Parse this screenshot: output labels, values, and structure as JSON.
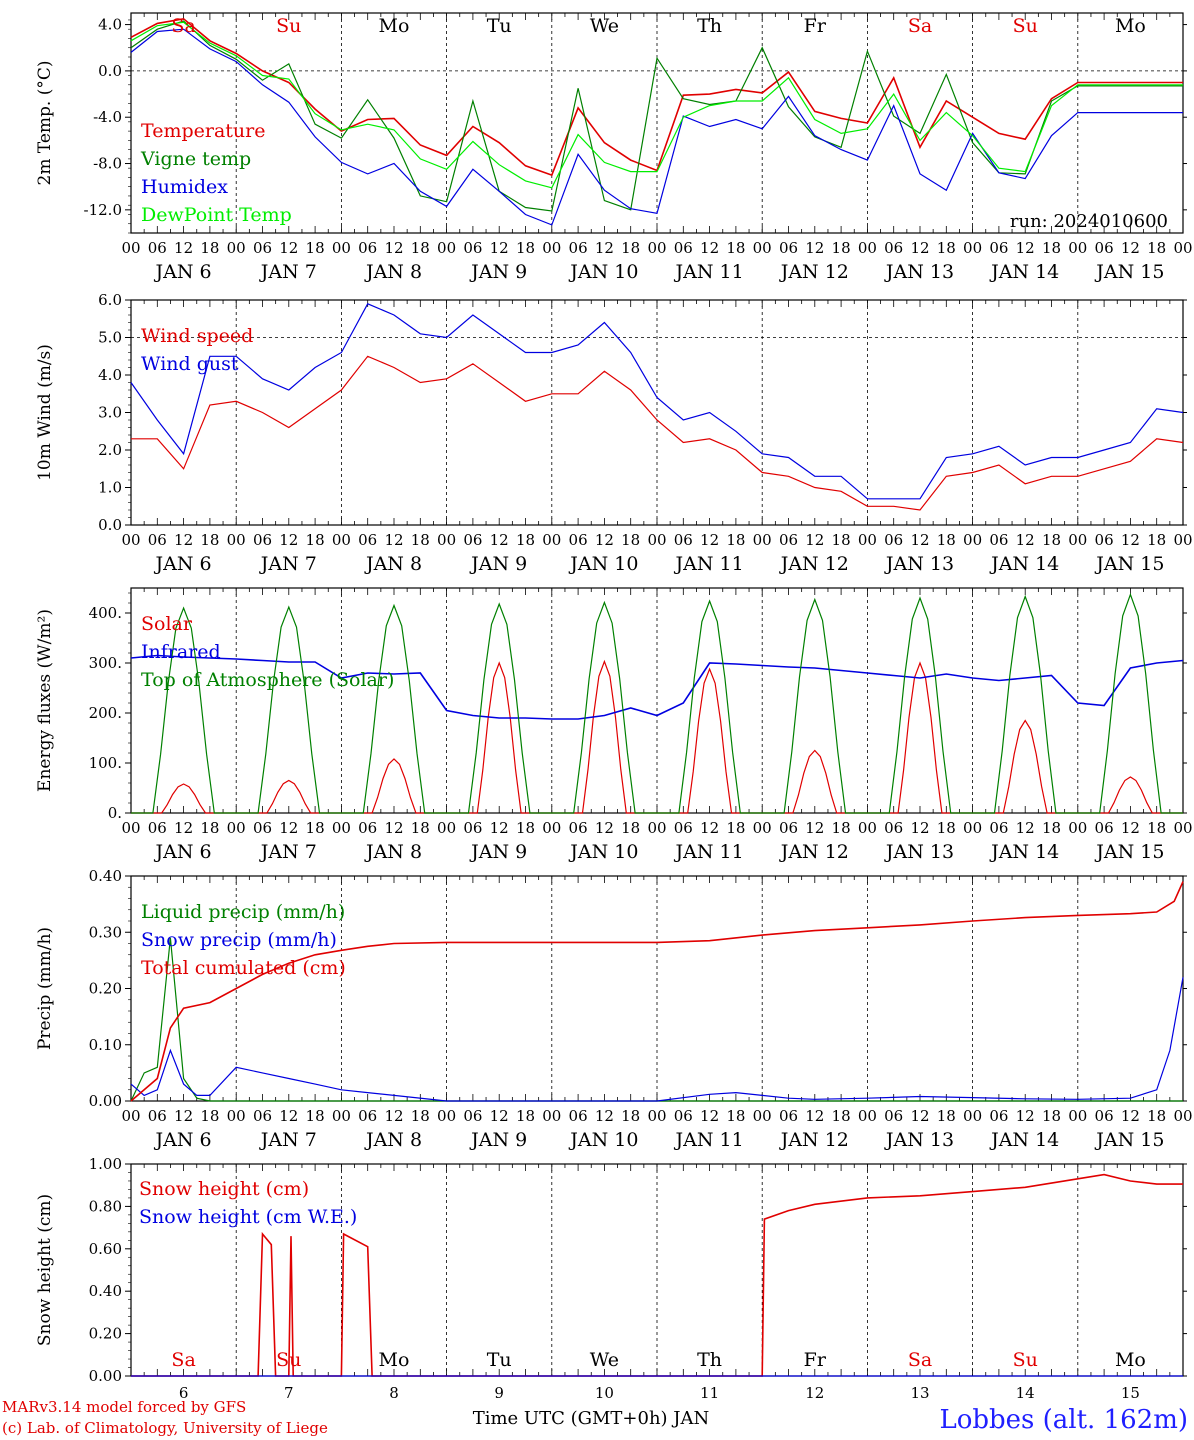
{
  "chart_data": [
    {
      "type": "line",
      "ylabel": "2m Temp. (°C)",
      "ylim": [
        -14,
        5
      ],
      "yticks": [
        4,
        0,
        -4,
        -8,
        -12
      ],
      "ytick_labels": [
        "4.0",
        "0.0",
        "-4.0",
        "-8.0",
        "-12.0"
      ],
      "annotation": "run: 2024010600",
      "grid": "vertical dashed day lines, dashed zero line",
      "legend_position": "left",
      "series": [
        {
          "name": "Temperature",
          "color": "#e00000",
          "x": [
            0,
            6,
            12,
            18,
            24,
            30,
            36,
            42,
            48,
            54,
            60,
            66,
            72,
            78,
            84,
            90,
            96,
            102,
            108,
            114,
            120,
            126,
            132,
            138,
            144,
            150,
            156,
            162,
            168,
            174,
            180,
            186,
            192,
            198,
            204,
            210,
            216,
            222,
            228,
            234,
            240
          ],
          "y": [
            2.9,
            4.1,
            4.5,
            2.6,
            1.5,
            0.0,
            -1.0,
            -3.3,
            -5.2,
            -4.2,
            -4.1,
            -6.4,
            -7.3,
            -4.8,
            -6.2,
            -8.2,
            -9.0,
            -3.2,
            -6.2,
            -7.7,
            -8.6,
            -2.1,
            -2.0,
            -1.6,
            -1.9,
            -0.1,
            -3.5,
            -4.1,
            -4.5,
            -0.6,
            -6.6,
            -2.6,
            -4.0,
            -5.4,
            -5.9,
            -2.4,
            -1.0,
            -1.0,
            -1.0,
            -1.0,
            -1.0
          ]
        },
        {
          "name": "Vigne temp",
          "color": "#008000",
          "x": [
            0,
            6,
            12,
            18,
            24,
            30,
            36,
            42,
            48,
            54,
            60,
            66,
            72,
            78,
            84,
            90,
            96,
            102,
            108,
            114,
            120,
            126,
            132,
            138,
            144,
            150,
            156,
            162,
            168,
            174,
            180,
            186,
            192,
            198,
            204,
            210,
            216,
            222,
            228,
            234,
            240
          ],
          "y": [
            2.0,
            3.6,
            4.3,
            2.2,
            1.0,
            -0.8,
            0.6,
            -4.6,
            -5.8,
            -2.5,
            -5.8,
            -10.8,
            -11.3,
            -2.6,
            -10.4,
            -11.8,
            -12.1,
            -1.5,
            -11.2,
            -12.0,
            1.1,
            -2.4,
            -2.9,
            -2.6,
            2.0,
            -3.1,
            -5.7,
            -6.6,
            1.7,
            -3.9,
            -5.4,
            -0.3,
            -6.2,
            -8.8,
            -8.9,
            -2.6,
            -1.3,
            -1.3,
            -1.3,
            -1.3,
            -1.3
          ]
        },
        {
          "name": "Humidex",
          "color": "#0000e0",
          "x": [
            0,
            6,
            12,
            18,
            24,
            30,
            36,
            42,
            48,
            54,
            60,
            66,
            72,
            78,
            84,
            90,
            96,
            102,
            108,
            114,
            120,
            126,
            132,
            138,
            144,
            150,
            156,
            162,
            168,
            174,
            180,
            186,
            192,
            198,
            204,
            210,
            216,
            222,
            228,
            234,
            240
          ],
          "y": [
            1.6,
            3.4,
            3.6,
            1.9,
            0.8,
            -1.2,
            -2.7,
            -5.7,
            -7.9,
            -8.9,
            -8.0,
            -10.4,
            -11.7,
            -8.5,
            -10.4,
            -12.4,
            -13.3,
            -7.2,
            -10.3,
            -11.9,
            -12.3,
            -3.9,
            -4.8,
            -4.2,
            -5.0,
            -2.2,
            -5.6,
            -6.8,
            -7.7,
            -3.0,
            -8.9,
            -10.3,
            -5.4,
            -8.8,
            -9.3,
            -5.6,
            -3.6,
            -3.6,
            -3.6,
            -3.6,
            -3.6
          ]
        },
        {
          "name": "DewPoint Temp",
          "color": "#00ee00",
          "x": [
            0,
            6,
            12,
            18,
            24,
            30,
            36,
            42,
            48,
            54,
            60,
            66,
            72,
            78,
            84,
            90,
            96,
            102,
            108,
            114,
            120,
            126,
            132,
            138,
            144,
            150,
            156,
            162,
            168,
            174,
            180,
            186,
            192,
            198,
            204,
            210,
            216,
            222,
            228,
            234,
            240
          ],
          "y": [
            2.6,
            3.9,
            4.2,
            2.4,
            1.3,
            -0.4,
            -0.7,
            -3.7,
            -5.1,
            -4.6,
            -5.1,
            -7.6,
            -8.5,
            -6.1,
            -8.1,
            -9.5,
            -10.1,
            -5.5,
            -7.9,
            -8.7,
            -8.7,
            -4.0,
            -3.0,
            -2.6,
            -2.6,
            -0.6,
            -4.2,
            -5.4,
            -5.0,
            -2.0,
            -6.0,
            -3.6,
            -5.6,
            -8.4,
            -8.7,
            -3.0,
            -1.2,
            -1.2,
            -1.2,
            -1.2,
            -1.2
          ]
        }
      ]
    },
    {
      "type": "line",
      "ylabel": "10m Wind (m/s)",
      "ylim": [
        0,
        6
      ],
      "yticks": [
        0,
        1,
        2,
        3,
        4,
        5,
        6
      ],
      "ytick_labels": [
        "0.0",
        "1.0",
        "2.0",
        "3.0",
        "4.0",
        "5.0",
        "6.0"
      ],
      "grid": "vertical dashed day lines, dashed line at 5.0",
      "legend_position": "left",
      "series": [
        {
          "name": "Wind speed",
          "color": "#e00000",
          "x": [
            0,
            6,
            12,
            18,
            24,
            30,
            36,
            42,
            48,
            54,
            60,
            66,
            72,
            78,
            84,
            90,
            96,
            102,
            108,
            114,
            120,
            126,
            132,
            138,
            144,
            150,
            156,
            162,
            168,
            174,
            180,
            186,
            192,
            198,
            204,
            210,
            216,
            222,
            228,
            234,
            240
          ],
          "y": [
            2.3,
            2.3,
            1.5,
            3.2,
            3.3,
            3.0,
            2.6,
            3.1,
            3.6,
            4.5,
            4.2,
            3.8,
            3.9,
            4.3,
            3.8,
            3.3,
            3.5,
            3.5,
            4.1,
            3.6,
            2.8,
            2.2,
            2.3,
            2.0,
            1.4,
            1.3,
            1.0,
            0.9,
            0.5,
            0.5,
            0.4,
            1.3,
            1.4,
            1.6,
            1.1,
            1.3,
            1.3,
            1.5,
            1.7,
            2.3,
            2.2
          ]
        },
        {
          "name": "Wind gust",
          "color": "#0000e0",
          "x": [
            0,
            6,
            12,
            18,
            24,
            30,
            36,
            42,
            48,
            54,
            60,
            66,
            72,
            78,
            84,
            90,
            96,
            102,
            108,
            114,
            120,
            126,
            132,
            138,
            144,
            150,
            156,
            162,
            168,
            174,
            180,
            186,
            192,
            198,
            204,
            210,
            216,
            222,
            228,
            234,
            240
          ],
          "y": [
            3.8,
            2.8,
            1.9,
            4.5,
            4.5,
            3.9,
            3.6,
            4.2,
            4.6,
            5.9,
            5.6,
            5.1,
            5.0,
            5.6,
            5.1,
            4.6,
            4.6,
            4.8,
            5.4,
            4.6,
            3.4,
            2.8,
            3.0,
            2.5,
            1.9,
            1.8,
            1.3,
            1.3,
            0.7,
            0.7,
            0.7,
            1.8,
            1.9,
            2.1,
            1.6,
            1.8,
            1.8,
            2.0,
            2.2,
            3.1,
            3.0
          ]
        }
      ]
    },
    {
      "type": "line",
      "ylabel": "Energy fluxes (W/m²)",
      "ylim": [
        0,
        450
      ],
      "yticks": [
        0,
        100,
        200,
        300,
        400
      ],
      "ytick_labels": [
        "0.",
        "100.",
        "200.",
        "300.",
        "400."
      ],
      "grid": "vertical dashed day lines",
      "legend_position": "left",
      "series": [
        {
          "name": "Solar",
          "color": "#e00000",
          "kind": "daily_peaks",
          "peak_x": [
            12,
            36,
            60,
            84,
            108,
            132,
            156,
            180,
            204,
            228
          ],
          "peak_y": [
            58,
            65,
            108,
            300,
            303,
            288,
            125,
            300,
            185,
            72
          ]
        },
        {
          "name": "Infrared",
          "color": "#0000e0",
          "x": [
            0,
            6,
            12,
            18,
            24,
            30,
            36,
            42,
            48,
            54,
            60,
            66,
            72,
            78,
            84,
            90,
            96,
            102,
            108,
            114,
            120,
            126,
            132,
            138,
            144,
            150,
            156,
            162,
            168,
            174,
            180,
            186,
            192,
            198,
            204,
            210,
            216,
            222,
            228,
            234,
            240
          ],
          "y": [
            310,
            315,
            312,
            310,
            308,
            305,
            302,
            302,
            270,
            280,
            278,
            280,
            205,
            195,
            190,
            190,
            188,
            188,
            195,
            210,
            195,
            220,
            300,
            298,
            295,
            292,
            290,
            285,
            280,
            275,
            270,
            278,
            270,
            265,
            270,
            275,
            220,
            215,
            290,
            300,
            305
          ]
        },
        {
          "name": "Top of Atmosphere (Solar)",
          "color": "#008000",
          "kind": "daily_peaks",
          "peak_x": [
            12,
            36,
            60,
            84,
            108,
            132,
            156,
            180,
            204,
            228
          ],
          "peak_y": [
            410,
            412,
            415,
            418,
            421,
            424,
            427,
            430,
            433,
            437
          ]
        }
      ]
    },
    {
      "type": "line",
      "ylabel": "Precip (mm/h)",
      "ylim": [
        0,
        0.4
      ],
      "yticks": [
        0,
        0.1,
        0.2,
        0.3,
        0.4
      ],
      "ytick_labels": [
        "0.00",
        "0.10",
        "0.20",
        "0.30",
        "0.40"
      ],
      "grid": "vertical dashed day lines",
      "legend_position": "left",
      "series": [
        {
          "name": "Liquid precip (mm/h)",
          "color": "#008000",
          "x": [
            0,
            3,
            6,
            9,
            12,
            15,
            18,
            24,
            240
          ],
          "y": [
            0.0,
            0.05,
            0.06,
            0.29,
            0.04,
            0.005,
            0.0,
            0.0,
            0.0
          ]
        },
        {
          "name": "Snow precip (mm/h)",
          "color": "#0000e0",
          "x": [
            0,
            3,
            6,
            9,
            12,
            15,
            18,
            24,
            30,
            36,
            42,
            48,
            54,
            60,
            72,
            96,
            120,
            132,
            138,
            144,
            150,
            156,
            168,
            180,
            192,
            204,
            216,
            228,
            234,
            237,
            240
          ],
          "y": [
            0.03,
            0.01,
            0.02,
            0.09,
            0.03,
            0.01,
            0.01,
            0.06,
            0.05,
            0.04,
            0.03,
            0.02,
            0.015,
            0.01,
            0.0,
            0.0,
            0.0,
            0.012,
            0.015,
            0.01,
            0.005,
            0.003,
            0.005,
            0.008,
            0.006,
            0.004,
            0.003,
            0.005,
            0.02,
            0.09,
            0.22
          ]
        },
        {
          "name": "Total cumulated (cm)",
          "color": "#e00000",
          "x": [
            0,
            6,
            9,
            12,
            18,
            24,
            30,
            36,
            42,
            48,
            54,
            60,
            72,
            96,
            120,
            132,
            144,
            156,
            168,
            180,
            192,
            204,
            216,
            228,
            234,
            238,
            240
          ],
          "y": [
            0.0,
            0.04,
            0.13,
            0.165,
            0.175,
            0.2,
            0.225,
            0.245,
            0.26,
            0.268,
            0.275,
            0.28,
            0.282,
            0.282,
            0.282,
            0.285,
            0.295,
            0.303,
            0.308,
            0.313,
            0.32,
            0.326,
            0.33,
            0.333,
            0.336,
            0.355,
            0.39
          ]
        }
      ]
    },
    {
      "type": "line",
      "ylabel": "Snow height (cm)",
      "ylim": [
        0,
        1
      ],
      "yticks": [
        0,
        0.2,
        0.4,
        0.6,
        0.8,
        1.0
      ],
      "ytick_labels": [
        "0.00",
        "0.20",
        "0.40",
        "0.60",
        "0.80",
        "1.00"
      ],
      "grid": "vertical dashed day lines",
      "legend_position": "left",
      "xlabel": "Time UTC (GMT+0h) JAN",
      "series": [
        {
          "name": "Snow height (cm)",
          "color": "#e00000",
          "x": [
            0,
            29,
            30,
            32,
            33,
            36,
            36.5,
            37,
            48,
            48.5,
            54,
            55,
            60,
            144,
            144.5,
            150,
            156,
            168,
            180,
            192,
            204,
            216,
            222,
            228,
            234,
            240
          ],
          "y": [
            0,
            0,
            0.67,
            0.62,
            0,
            0,
            0.66,
            0,
            0,
            0.67,
            0.61,
            0,
            0,
            0,
            0.74,
            0.78,
            0.81,
            0.84,
            0.85,
            0.87,
            0.89,
            0.93,
            0.95,
            0.92,
            0.905,
            0.905
          ]
        },
        {
          "name": "Snow height (cm W.E.)",
          "color": "#0000e0",
          "x": [
            0,
            240
          ],
          "y": [
            0,
            0
          ]
        }
      ]
    }
  ],
  "days": [
    {
      "abbr": "Sa",
      "color": "#e00000",
      "jan": "6"
    },
    {
      "abbr": "Su",
      "color": "#e00000",
      "jan": "7"
    },
    {
      "abbr": "Mo",
      "color": "#000000",
      "jan": "8"
    },
    {
      "abbr": "Tu",
      "color": "#000000",
      "jan": "9"
    },
    {
      "abbr": "We",
      "color": "#000000",
      "jan": "10"
    },
    {
      "abbr": "Th",
      "color": "#000000",
      "jan": "11"
    },
    {
      "abbr": "Fr",
      "color": "#000000",
      "jan": "12"
    },
    {
      "abbr": "Sa",
      "color": "#e00000",
      "jan": "13"
    },
    {
      "abbr": "Su",
      "color": "#e00000",
      "jan": "14"
    },
    {
      "abbr": "Mo",
      "color": "#000000",
      "jan": "15"
    }
  ],
  "x_hour_labels": [
    "00",
    "06",
    "12",
    "18"
  ],
  "x_end_label": "00",
  "month_label": "JAN",
  "footer": {
    "credit_line1": "MARv3.14 model forced by GFS",
    "credit_line2": "(c) Lab. of Climatology, University of Liege",
    "location": "Lobbes (alt. 162m)"
  }
}
